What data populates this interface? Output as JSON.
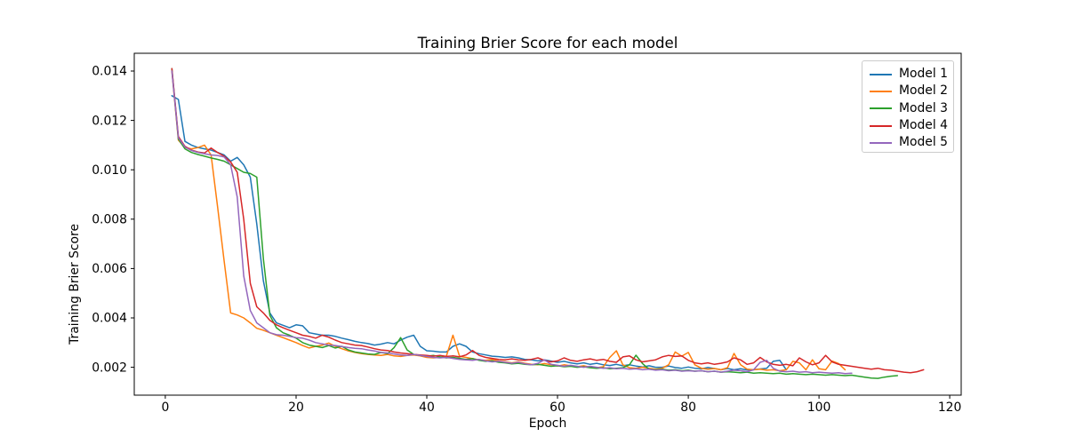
{
  "chart_data": {
    "type": "line",
    "title": "Training Brier Score for each model",
    "xlabel": "Epoch",
    "ylabel": "Training Brier Score",
    "xlim": [
      -4.75,
      121.75
    ],
    "ylim": [
      0.00087,
      0.01472
    ],
    "grid": false,
    "legend_position": "upper right",
    "xticks": {
      "values": [
        0,
        20,
        40,
        60,
        80,
        100,
        120
      ],
      "labels": [
        "0",
        "20",
        "40",
        "60",
        "80",
        "100",
        "120"
      ]
    },
    "yticks": {
      "values": [
        0.002,
        0.004,
        0.006,
        0.008,
        0.01,
        0.012,
        0.014
      ],
      "labels": [
        "0.002",
        "0.004",
        "0.006",
        "0.008",
        "0.010",
        "0.012",
        "0.014"
      ]
    },
    "series": [
      {
        "name": "Model 1",
        "color": "#1f77b4",
        "x_start": 1,
        "values": [
          0.013,
          0.01285,
          0.01115,
          0.011,
          0.0109,
          0.01085,
          0.0108,
          0.0107,
          0.0106,
          0.01035,
          0.0105,
          0.0102,
          0.0097,
          0.0078,
          0.0055,
          0.0042,
          0.0038,
          0.0037,
          0.0036,
          0.00372,
          0.00368,
          0.0034,
          0.00335,
          0.0033,
          0.0033,
          0.00325,
          0.00318,
          0.00312,
          0.00305,
          0.003,
          0.00296,
          0.0029,
          0.00294,
          0.003,
          0.00295,
          0.0031,
          0.00322,
          0.0033,
          0.00285,
          0.00267,
          0.00265,
          0.00262,
          0.00262,
          0.00285,
          0.00295,
          0.00285,
          0.00262,
          0.00255,
          0.0025,
          0.00245,
          0.00243,
          0.0024,
          0.00242,
          0.00238,
          0.00232,
          0.0023,
          0.00226,
          0.0023,
          0.00225,
          0.0022,
          0.00224,
          0.00218,
          0.00214,
          0.00218,
          0.00212,
          0.00216,
          0.0021,
          0.00207,
          0.00212,
          0.00206,
          0.0021,
          0.00205,
          0.00201,
          0.00206,
          0.002,
          0.002,
          0.00205,
          0.00199,
          0.00196,
          0.00201,
          0.00196,
          0.00194,
          0.00199,
          0.00195,
          0.0019,
          0.00195,
          0.0019,
          0.00194,
          0.00189,
          0.0019,
          0.00193,
          0.00196,
          0.00224,
          0.00228,
          0.0019
        ]
      },
      {
        "name": "Model 2",
        "color": "#ff7f0e",
        "x_start": 1,
        "values": [
          0.014,
          0.0112,
          0.0109,
          0.01085,
          0.0109,
          0.011,
          0.0106,
          0.0085,
          0.0063,
          0.0042,
          0.00412,
          0.004,
          0.0038,
          0.00358,
          0.0035,
          0.0034,
          0.0033,
          0.0032,
          0.0031,
          0.003,
          0.00288,
          0.00278,
          0.00285,
          0.0029,
          0.00298,
          0.00285,
          0.00275,
          0.00266,
          0.0026,
          0.00255,
          0.00252,
          0.0025,
          0.00248,
          0.00252,
          0.00246,
          0.00244,
          0.00248,
          0.0025,
          0.00246,
          0.0024,
          0.00238,
          0.0024,
          0.00245,
          0.0033,
          0.00245,
          0.0024,
          0.00235,
          0.0023,
          0.00228,
          0.00232,
          0.00225,
          0.00222,
          0.00218,
          0.00222,
          0.00216,
          0.00212,
          0.0021,
          0.00215,
          0.0021,
          0.00205,
          0.0021,
          0.00206,
          0.00202,
          0.00206,
          0.002,
          0.00198,
          0.00202,
          0.0024,
          0.00267,
          0.0021,
          0.00198,
          0.00196,
          0.002,
          0.00196,
          0.00192,
          0.00196,
          0.0021,
          0.00262,
          0.00245,
          0.0026,
          0.0021,
          0.00196,
          0.00192,
          0.00195,
          0.0019,
          0.00198,
          0.00256,
          0.0021,
          0.00192,
          0.0019,
          0.00192,
          0.00188,
          0.0019,
          0.00186,
          0.0019,
          0.00224,
          0.00218,
          0.0019,
          0.0023,
          0.00194,
          0.0019,
          0.00225,
          0.00215,
          0.0019
        ]
      },
      {
        "name": "Model 3",
        "color": "#2ca02c",
        "x_start": 1,
        "values": [
          0.0141,
          0.01125,
          0.01085,
          0.0107,
          0.01062,
          0.01055,
          0.01048,
          0.01042,
          0.01035,
          0.0102,
          0.01005,
          0.0099,
          0.00985,
          0.0097,
          0.0064,
          0.0041,
          0.0036,
          0.0034,
          0.0033,
          0.00318,
          0.003,
          0.0029,
          0.00285,
          0.0028,
          0.00288,
          0.00278,
          0.00285,
          0.0027,
          0.00262,
          0.00258,
          0.00254,
          0.00252,
          0.0026,
          0.00255,
          0.0028,
          0.0032,
          0.0027,
          0.00252,
          0.00248,
          0.00245,
          0.00248,
          0.00242,
          0.00238,
          0.0024,
          0.00236,
          0.00232,
          0.00235,
          0.00228,
          0.00224,
          0.00226,
          0.0022,
          0.00218,
          0.00214,
          0.00216,
          0.00212,
          0.0021,
          0.00212,
          0.00208,
          0.00204,
          0.00206,
          0.00202,
          0.00204,
          0.002,
          0.00202,
          0.00198,
          0.00196,
          0.00198,
          0.00194,
          0.00196,
          0.00198,
          0.0021,
          0.00249,
          0.00215,
          0.00192,
          0.0019,
          0.00192,
          0.00188,
          0.0019,
          0.00186,
          0.00188,
          0.00184,
          0.00186,
          0.00182,
          0.00184,
          0.0018,
          0.00182,
          0.0018,
          0.00178,
          0.0018,
          0.00176,
          0.00178,
          0.00176,
          0.00174,
          0.00176,
          0.00172,
          0.00174,
          0.00172,
          0.0017,
          0.00172,
          0.0017,
          0.00168,
          0.0017,
          0.00168,
          0.00166,
          0.00168,
          0.00164,
          0.0016,
          0.00156,
          0.00155,
          0.0016,
          0.00164,
          0.00166
        ]
      },
      {
        "name": "Model 4",
        "color": "#d62728",
        "x_start": 1,
        "values": [
          0.0141,
          0.01135,
          0.01095,
          0.0108,
          0.01072,
          0.01068,
          0.01088,
          0.0107,
          0.01055,
          0.01032,
          0.0099,
          0.008,
          0.0054,
          0.00445,
          0.0042,
          0.0039,
          0.00372,
          0.0036,
          0.0035,
          0.0034,
          0.0033,
          0.00325,
          0.00318,
          0.0033,
          0.00322,
          0.0031,
          0.003,
          0.00295,
          0.0029,
          0.00288,
          0.00282,
          0.00275,
          0.0027,
          0.00268,
          0.00262,
          0.00258,
          0.00255,
          0.00252,
          0.0025,
          0.00248,
          0.00245,
          0.00248,
          0.00244,
          0.00246,
          0.00242,
          0.0025,
          0.00268,
          0.00248,
          0.0024,
          0.00236,
          0.00232,
          0.0023,
          0.00234,
          0.0023,
          0.00228,
          0.00232,
          0.00238,
          0.00228,
          0.00222,
          0.00226,
          0.00238,
          0.00228,
          0.00224,
          0.0023,
          0.00234,
          0.00228,
          0.00232,
          0.00224,
          0.0022,
          0.00242,
          0.00246,
          0.0023,
          0.00222,
          0.00226,
          0.0023,
          0.00242,
          0.00248,
          0.00244,
          0.00246,
          0.00228,
          0.00218,
          0.00214,
          0.00218,
          0.00212,
          0.00216,
          0.00222,
          0.00238,
          0.0023,
          0.00212,
          0.00218,
          0.0024,
          0.00222,
          0.00212,
          0.00208,
          0.00212,
          0.00206,
          0.00238,
          0.00222,
          0.0021,
          0.00218,
          0.00248,
          0.00222,
          0.00212,
          0.00208,
          0.00204,
          0.002,
          0.00196,
          0.00192,
          0.00196,
          0.0019,
          0.00188,
          0.00184,
          0.0018,
          0.00178,
          0.00182,
          0.0019
        ]
      },
      {
        "name": "Model 5",
        "color": "#9467bd",
        "x_start": 1,
        "values": [
          0.014,
          0.0113,
          0.01092,
          0.01078,
          0.0107,
          0.01065,
          0.0106,
          0.01058,
          0.01052,
          0.0102,
          0.0089,
          0.0057,
          0.0043,
          0.0038,
          0.0036,
          0.0034,
          0.00332,
          0.0033,
          0.00325,
          0.0032,
          0.00318,
          0.0031,
          0.003,
          0.00295,
          0.0029,
          0.00288,
          0.00284,
          0.0028,
          0.00277,
          0.00275,
          0.0027,
          0.00266,
          0.0026,
          0.00258,
          0.00254,
          0.0025,
          0.00248,
          0.00252,
          0.00248,
          0.00244,
          0.0024,
          0.00238,
          0.0024,
          0.00236,
          0.00232,
          0.0023,
          0.00228,
          0.00232,
          0.00226,
          0.00222,
          0.00224,
          0.0022,
          0.00216,
          0.0022,
          0.00214,
          0.0021,
          0.00216,
          0.0023,
          0.00212,
          0.00208,
          0.00204,
          0.00208,
          0.00204,
          0.002,
          0.00204,
          0.002,
          0.00196,
          0.00198,
          0.00194,
          0.00196,
          0.00192,
          0.00194,
          0.0019,
          0.00192,
          0.00188,
          0.0019,
          0.00186,
          0.00188,
          0.00184,
          0.00186,
          0.00184,
          0.00186,
          0.00182,
          0.00184,
          0.0018,
          0.00184,
          0.00188,
          0.00186,
          0.00182,
          0.0019,
          0.0022,
          0.00228,
          0.00196,
          0.00184,
          0.00182,
          0.00184,
          0.0018,
          0.00182,
          0.00178,
          0.0018,
          0.00178,
          0.00176,
          0.00178,
          0.00174,
          0.00176
        ]
      }
    ]
  }
}
